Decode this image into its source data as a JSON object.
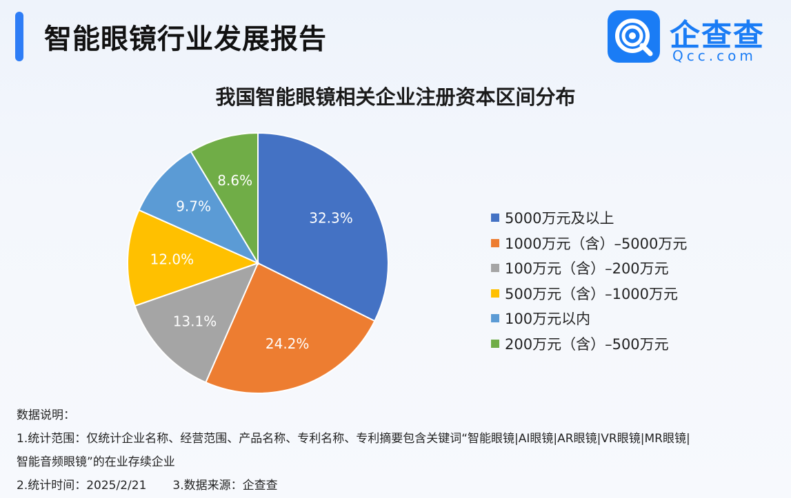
{
  "header": {
    "title": "智能眼镜行业发展报告"
  },
  "logo": {
    "name_cn": "企查查",
    "name_en": "Qcc.com",
    "color": "#1a7cf5"
  },
  "chart_data": {
    "type": "pie",
    "title": "我国智能眼镜相关企业注册资本区间分布",
    "legend_position": "right",
    "slices": [
      {
        "label": "5000万元及以上",
        "value": 32.3,
        "display": "32.3%",
        "color": "#4472c4"
      },
      {
        "label": "1000万元（含）–5000万元",
        "value": 24.2,
        "display": "24.2%",
        "color": "#ed7d31"
      },
      {
        "label": "100万元（含）–200万元",
        "value": 13.1,
        "display": "13.1%",
        "color": "#a5a5a5"
      },
      {
        "label": "500万元（含）–1000万元",
        "value": 12.0,
        "display": "12.0%",
        "color": "#ffc000"
      },
      {
        "label": "100万元以内",
        "value": 9.7,
        "display": "9.7%",
        "color": "#5b9bd5"
      },
      {
        "label": "200万元（含）–500万元",
        "value": 8.6,
        "display": "8.6%",
        "color": "#70ad47"
      }
    ]
  },
  "notes": {
    "heading": "数据说明：",
    "line1": "1.统计范围：仅统计企业名称、经营范围、产品名称、专利名称、专利摘要包含关键词“智能眼镜|AI眼镜|AR眼镜|VR眼镜|MR眼镜|",
    "line2": "智能音频眼镜”的在业存续企业",
    "time": "2.统计时间：2025/2/21",
    "source": "3.数据来源：企查查"
  }
}
